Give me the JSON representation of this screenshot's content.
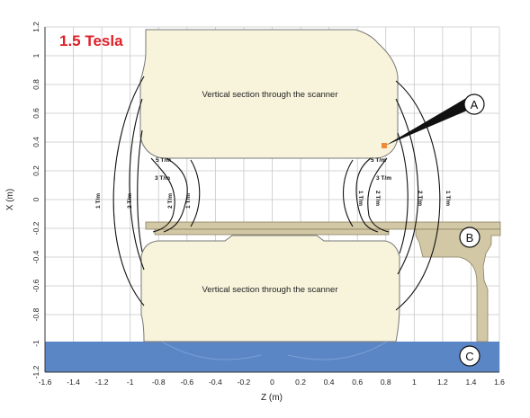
{
  "title": "1.5 Tesla",
  "xlabel": "Z (m)",
  "ylabel": "X (m)",
  "x_ticks": [
    "-1.6",
    "-1.4",
    "-1.2",
    "-1",
    "-0.8",
    "-0.6",
    "-0.4",
    "-0.2",
    "0",
    "0.2",
    "0.4",
    "0.6",
    "0.8",
    "1",
    "1.2",
    "1.4",
    "1.6"
  ],
  "y_ticks": [
    "1.2",
    "1",
    "0.8",
    "0.6",
    "0.4",
    "0.2",
    "0",
    "-0.2",
    "-0.4",
    "-0.6",
    "-0.8",
    "-1",
    "-1.2"
  ],
  "section_label_top": "Vertical section through the scanner",
  "section_label_bottom": "Vertical section through the scanner",
  "contours": {
    "t1": "1 T/m",
    "t2": "2 T/m",
    "t3": "3 T/m",
    "t5": "5 T/m"
  },
  "markers": {
    "a": "A",
    "b": "B",
    "c": "C"
  },
  "colors": {
    "title": "#e0202a",
    "scanner_fill": "#f8f4dc",
    "table_fill": "#d2c8a6",
    "floor_fill": "#5b86c6",
    "grid": "#c8c8c8",
    "contour": "#111111"
  }
}
